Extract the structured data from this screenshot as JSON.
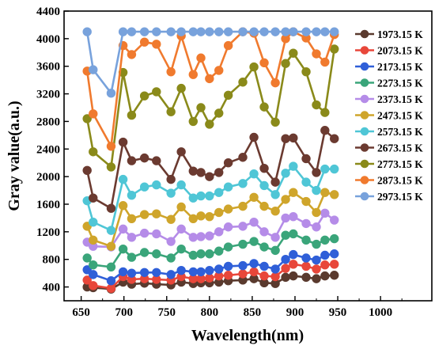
{
  "chart_data": {
    "type": "line",
    "xlabel": "Wavelength(nm)",
    "ylabel": "Gray value(a.u.)",
    "xlim": [
      630,
      1060
    ],
    "ylim": [
      200,
      4400
    ],
    "xticks": [
      650,
      700,
      750,
      800,
      850,
      900,
      950,
      1000
    ],
    "yticks": [
      400,
      800,
      1200,
      1600,
      2000,
      2400,
      2800,
      3200,
      3600,
      4000,
      4400
    ],
    "grid": false,
    "legend_position": "top-right",
    "x": [
      657,
      664,
      685,
      699,
      709,
      724,
      738,
      755,
      767,
      781,
      790,
      800,
      811,
      822,
      839,
      852,
      864,
      877,
      889,
      898,
      913,
      925,
      935,
      946
    ],
    "series": [
      {
        "name": "1973.15 K",
        "color": "#5a3a2e",
        "values": [
          400,
          390,
          370,
          470,
          440,
          455,
          440,
          430,
          470,
          450,
          460,
          460,
          470,
          490,
          500,
          520,
          460,
          450,
          540,
          560,
          540,
          520,
          560,
          570
        ]
      },
      {
        "name": "2073.15 K",
        "color": "#e8473a",
        "values": [
          500,
          420,
          380,
          550,
          510,
          520,
          510,
          500,
          550,
          520,
          520,
          530,
          560,
          570,
          590,
          620,
          560,
          550,
          670,
          730,
          700,
          660,
          720,
          730
        ]
      },
      {
        "name": "2173.15 K",
        "color": "#2f5fd8",
        "values": [
          650,
          580,
          490,
          620,
          600,
          610,
          610,
          580,
          640,
          620,
          620,
          640,
          660,
          700,
          710,
          740,
          700,
          660,
          800,
          870,
          820,
          790,
          860,
          880
        ]
      },
      {
        "name": "2273.15 K",
        "color": "#3aa57a",
        "values": [
          820,
          720,
          690,
          950,
          830,
          900,
          880,
          820,
          950,
          860,
          880,
          880,
          920,
          980,
          1020,
          1060,
          980,
          930,
          1150,
          1170,
          1080,
          1020,
          1080,
          1100
        ]
      },
      {
        "name": "2373.15 K",
        "color": "#b58ce8",
        "values": [
          1050,
          990,
          980,
          1240,
          1120,
          1180,
          1170,
          1060,
          1240,
          1120,
          1130,
          1140,
          1200,
          1270,
          1280,
          1340,
          1200,
          1120,
          1400,
          1420,
          1320,
          1270,
          1470,
          1370
        ]
      },
      {
        "name": "2473.15 K",
        "color": "#cfa52b",
        "values": [
          1280,
          1080,
          990,
          1580,
          1390,
          1450,
          1460,
          1380,
          1560,
          1390,
          1430,
          1420,
          1480,
          1530,
          1570,
          1700,
          1570,
          1500,
          1670,
          1770,
          1640,
          1480,
          1770,
          1740
        ]
      },
      {
        "name": "2573.15 K",
        "color": "#4fc6d6",
        "values": [
          1650,
          1340,
          1220,
          1960,
          1730,
          1850,
          1880,
          1760,
          1880,
          1690,
          1720,
          1720,
          1770,
          1850,
          1900,
          2040,
          1870,
          1740,
          2050,
          2150,
          1920,
          1800,
          2110,
          2110
        ]
      },
      {
        "name": "2673.15 K",
        "color": "#6b3a30",
        "values": [
          2090,
          1690,
          1540,
          2500,
          2230,
          2270,
          2230,
          1960,
          2360,
          2080,
          2060,
          2000,
          2060,
          2200,
          2280,
          2570,
          2120,
          1920,
          2550,
          2560,
          2260,
          2060,
          2670,
          2550
        ]
      },
      {
        "name": "2773.15 K",
        "color": "#8a8a1a",
        "values": [
          2840,
          2360,
          2140,
          3510,
          2890,
          3170,
          3230,
          2940,
          3280,
          2800,
          3000,
          2760,
          2920,
          3180,
          3370,
          3590,
          3010,
          2790,
          3640,
          3790,
          3520,
          3040,
          2930,
          3850
        ]
      },
      {
        "name": "2873.15 K",
        "color": "#f07a2e",
        "values": [
          3530,
          2910,
          2440,
          3900,
          3770,
          3950,
          3920,
          3520,
          4040,
          3480,
          3720,
          3420,
          3540,
          3900,
          4100,
          4080,
          3650,
          3360,
          4000,
          4100,
          4010,
          3780,
          3660,
          4060
        ]
      },
      {
        "name": "2973.15 K",
        "color": "#78a2dc",
        "values": [
          4100,
          3550,
          3210,
          4100,
          4100,
          4100,
          4100,
          4100,
          4100,
          4100,
          4100,
          4100,
          4100,
          4100,
          4100,
          4100,
          4100,
          4100,
          4100,
          4100,
          4100,
          4100,
          4100,
          4100
        ]
      }
    ]
  }
}
